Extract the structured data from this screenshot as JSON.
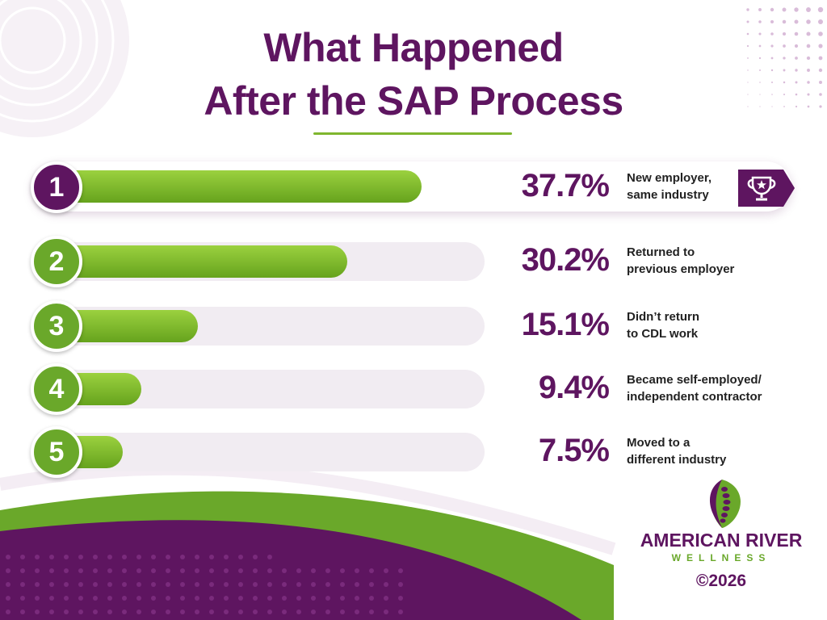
{
  "title": [
    "What Happened",
    "After the SAP Process"
  ],
  "colors": {
    "purple": "#5e1560",
    "green": "#6aa82a",
    "green_light": "#9bd13f",
    "track": "#f1ecf2"
  },
  "icons": [
    "trophy-icon",
    "spine-leaf-logo-icon"
  ],
  "chart_data": {
    "type": "bar",
    "orientation": "horizontal",
    "title": "What Happened After the SAP Process",
    "ranks": [
      "1",
      "2",
      "3",
      "4",
      "5"
    ],
    "values": [
      37.7,
      30.2,
      15.1,
      9.4,
      7.5
    ],
    "value_labels": [
      "37.7%",
      "30.2%",
      "15.1%",
      "9.4%",
      "7.5%"
    ],
    "categories": [
      [
        "New employer,",
        "same industry"
      ],
      [
        "Returned to",
        "previous employer"
      ],
      [
        "Didn’t return",
        "to CDL work"
      ],
      [
        "Became self-employed/",
        "independent contractor"
      ],
      [
        "Moved to a",
        "different industry"
      ]
    ],
    "xlim": [
      0,
      45
    ],
    "grid": false,
    "legend": "none"
  },
  "footer": {
    "brand_name": "AMERICAN RIVER",
    "brand_sub": "WELLNESS",
    "copyright": "©2026"
  }
}
